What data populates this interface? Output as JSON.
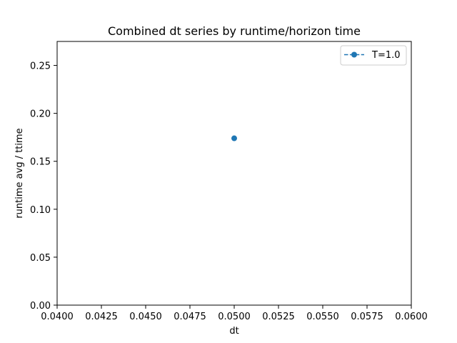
{
  "chart_data": {
    "type": "line",
    "title": "Combined dt series by runtime/horizon time",
    "xlabel": "dt",
    "ylabel": "runtime avg / ttime",
    "xlim": [
      0.04,
      0.06
    ],
    "ylim": [
      0.0,
      0.275
    ],
    "xticks": [
      "0.0400",
      "0.0425",
      "0.0450",
      "0.0475",
      "0.0500",
      "0.0525",
      "0.0550",
      "0.0575",
      "0.0600"
    ],
    "yticks": [
      "0.00",
      "0.05",
      "0.10",
      "0.15",
      "0.20",
      "0.25"
    ],
    "grid": false,
    "legend_position": "top-right",
    "series": [
      {
        "name": "T=1.0",
        "color": "#1f77b4",
        "line_style": "dashed",
        "marker": "circle",
        "points": [
          {
            "x": 0.05,
            "y": 0.174
          }
        ]
      }
    ]
  }
}
